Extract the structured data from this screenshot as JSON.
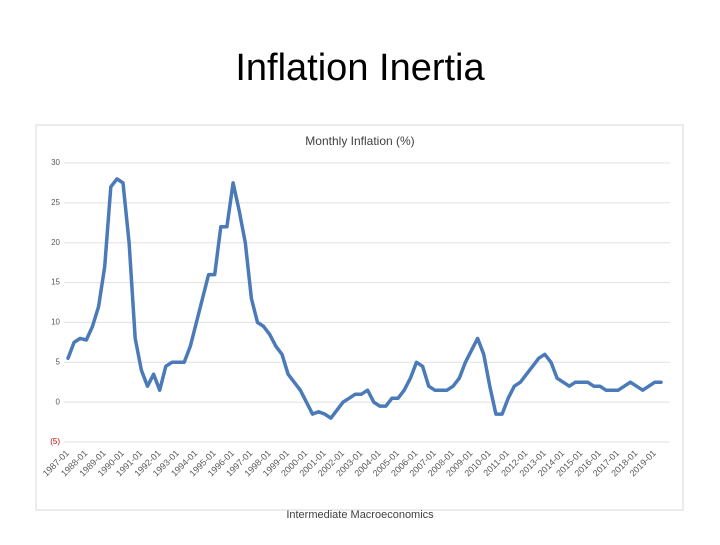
{
  "title": "Inflation Inertia",
  "footer": "Intermediate Macroeconomics",
  "chart_data": {
    "type": "line",
    "title": "Monthly Inflation (%)",
    "categories": [
      "1987-01",
      null,
      null,
      "1988-01",
      null,
      null,
      "1989-01",
      null,
      null,
      "1990-01",
      null,
      null,
      "1991-01",
      null,
      null,
      "1992-01",
      null,
      null,
      "1993-01",
      null,
      null,
      "1994-01",
      null,
      null,
      "1995-01",
      null,
      null,
      "1996-01",
      null,
      null,
      "1997-01",
      null,
      null,
      "1998-01",
      null,
      null,
      "1999-01",
      null,
      null,
      "2000-01",
      null,
      null,
      "2001-01",
      null,
      null,
      "2002-01",
      null,
      null,
      "2003-01",
      null,
      null,
      "2004-01",
      null,
      null,
      "2005-01",
      null,
      null,
      "2006-01",
      null,
      null,
      "2007-01",
      null,
      null,
      "2008-01",
      null,
      null,
      "2009-01",
      null,
      null,
      "2010-01",
      null,
      null,
      "2011-01",
      null,
      null,
      "2012-01",
      null,
      null,
      "2013-01",
      null,
      null,
      "2014-01",
      null,
      null,
      "2015-01",
      null,
      null,
      "2016-01",
      null,
      null,
      "2017-01",
      null,
      null,
      "2018-01",
      null,
      null,
      "2019-01",
      null
    ],
    "values": [
      5.5,
      7.5,
      8,
      7.8,
      9.5,
      12,
      17,
      27,
      28,
      27.5,
      20,
      8,
      4,
      2,
      3.5,
      1.5,
      4.5,
      5,
      5,
      5,
      7,
      10,
      13,
      16,
      16,
      22,
      22,
      27.5,
      24,
      20,
      13,
      10,
      9.5,
      8.5,
      7,
      6,
      3.5,
      2.5,
      1.5,
      0,
      -1.5,
      -1.2,
      -1.5,
      -2,
      -1,
      0,
      0.5,
      1,
      1,
      1.5,
      0,
      -0.5,
      -0.5,
      0.5,
      0.5,
      1.5,
      3,
      5,
      4.5,
      2,
      1.5,
      1.5,
      1.5,
      2,
      3,
      5,
      6.5,
      8,
      6,
      2,
      -1.5,
      -1.5,
      0.5,
      2,
      2.5,
      3.5,
      4.5,
      5.5,
      6,
      5,
      3,
      2.5,
      2,
      2.5,
      2.5,
      2.5,
      2,
      2,
      1.5,
      1.5,
      1.5,
      2,
      2.5,
      2,
      1.5,
      2,
      2.5,
      2.5
    ],
    "color": "#4a7ab8",
    "negative_tick_color": "#c00000",
    "ylim": [
      -5,
      30
    ],
    "yticks": [
      {
        "value": -5,
        "label": "(5)"
      },
      0,
      5,
      10,
      15,
      20,
      25,
      30
    ],
    "grid": true
  }
}
